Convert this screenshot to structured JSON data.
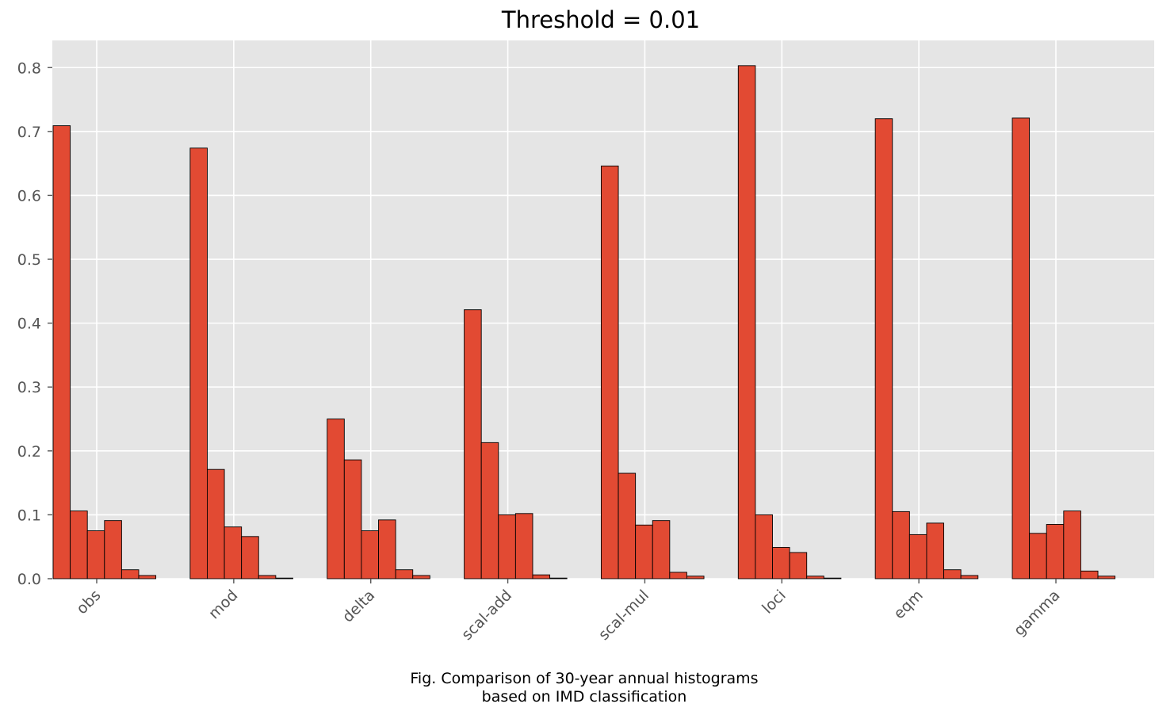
{
  "chart_data": {
    "type": "bar",
    "title": "Threshold = 0.01",
    "xlabel": "",
    "ylabel": "",
    "categories": [
      "obs",
      "mod",
      "delta",
      "scal-add",
      "scal-mul",
      "loci",
      "eqm",
      "gamma"
    ],
    "bins_per_group": 6,
    "values": [
      [
        0.709,
        0.106,
        0.075,
        0.091,
        0.014,
        0.005
      ],
      [
        0.674,
        0.171,
        0.081,
        0.066,
        0.005,
        0.001
      ],
      [
        0.25,
        0.186,
        0.075,
        0.092,
        0.014,
        0.005
      ],
      [
        0.421,
        0.213,
        0.1,
        0.102,
        0.006,
        0.001
      ],
      [
        0.646,
        0.165,
        0.084,
        0.091,
        0.01,
        0.004
      ],
      [
        0.803,
        0.1,
        0.049,
        0.041,
        0.004,
        0.001
      ],
      [
        0.72,
        0.105,
        0.069,
        0.087,
        0.014,
        0.005
      ],
      [
        0.721,
        0.071,
        0.085,
        0.106,
        0.012,
        0.004
      ]
    ],
    "ylim": [
      0,
      0.8425
    ],
    "yticks": [
      "0.0",
      "0.1",
      "0.2",
      "0.3",
      "0.4",
      "0.5",
      "0.6",
      "0.7",
      "0.8"
    ],
    "grid": true,
    "legend": "none",
    "colors": {
      "bar": "#E24A33",
      "bar_edge": "#000000",
      "plot_bg": "#E5E5E5",
      "grid": "#FFFFFF",
      "tick_text": "#555555"
    }
  },
  "caption": {
    "line1": "Fig. Comparison of 30-year annual histograms",
    "line2": "based on IMD classification"
  }
}
